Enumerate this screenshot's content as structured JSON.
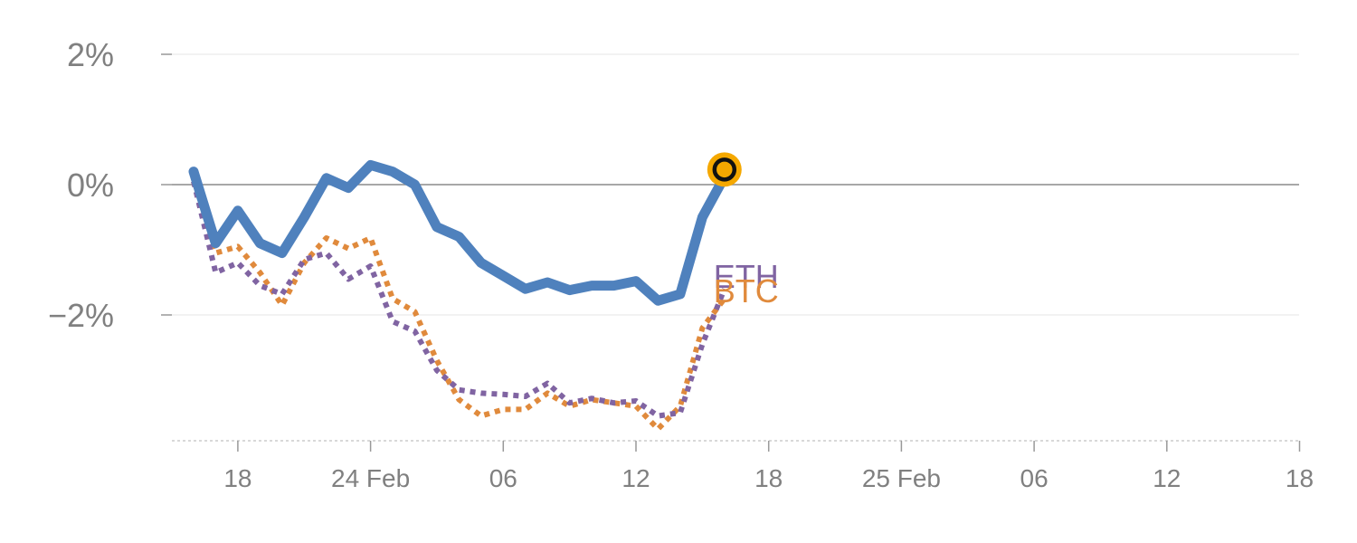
{
  "chart_data": {
    "type": "line",
    "x_tick_labels": [
      "18",
      "24 Feb",
      "06",
      "12",
      "18",
      "25 Feb",
      "06",
      "12",
      "18"
    ],
    "y_tick_labels": [
      "2%",
      "0%",
      "−2%"
    ],
    "y_tick_values": [
      2,
      0,
      -2
    ],
    "ylim": [
      -3.95,
      2.4
    ],
    "x_index_range": [
      0,
      49
    ],
    "grid": true,
    "zero_line": true,
    "colors": {
      "main": "#4f81bd",
      "eth": "#8064a2",
      "btc": "#e08a3c",
      "marker_fill": "#f5a800",
      "marker_stroke": "#111111",
      "grid": "#e6e6e6",
      "zero": "#8c8c8c",
      "axis": "#cccccc",
      "tick_text": "#808080"
    },
    "series": [
      {
        "key": "main",
        "style": "solid",
        "values": [
          0.2,
          -0.9,
          -0.4,
          -0.9,
          -1.05,
          -0.5,
          0.1,
          -0.05,
          0.3,
          0.2,
          0.0,
          -0.65,
          -0.8,
          -1.2,
          -1.4,
          -1.6,
          -1.5,
          -1.62,
          -1.55,
          -1.55,
          -1.48,
          -1.78,
          -1.68,
          -0.5,
          0.12
        ]
      },
      {
        "key": "eth",
        "name": "ETH",
        "style": "dotted",
        "values": [
          0.05,
          -1.35,
          -1.2,
          -1.55,
          -1.68,
          -1.15,
          -1.05,
          -1.45,
          -1.25,
          -2.1,
          -2.25,
          -2.85,
          -3.15,
          -3.2,
          -3.22,
          -3.25,
          -3.05,
          -3.35,
          -3.28,
          -3.35,
          -3.32,
          -3.55,
          -3.5,
          -2.45,
          -1.6
        ]
      },
      {
        "key": "btc",
        "name": "BTC",
        "style": "dotted",
        "values": [
          0.05,
          -1.05,
          -0.95,
          -1.35,
          -1.85,
          -1.2,
          -0.82,
          -0.98,
          -0.82,
          -1.75,
          -1.95,
          -2.7,
          -3.3,
          -3.55,
          -3.45,
          -3.45,
          -3.2,
          -3.4,
          -3.3,
          -3.35,
          -3.4,
          -3.75,
          -3.4,
          -2.2,
          -1.75
        ]
      }
    ],
    "current_point": {
      "x_index": 24,
      "value": 0.12
    }
  }
}
